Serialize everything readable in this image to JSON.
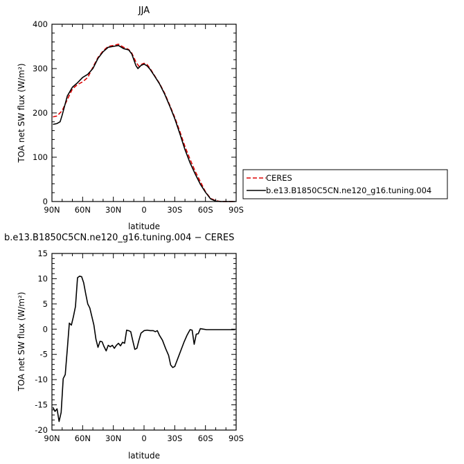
{
  "chart_data": [
    {
      "type": "line",
      "title": "JJA",
      "xlabel": "latitude",
      "ylabel": "TOA net SW flux (W/m²)",
      "xticks": [
        {
          "v": 90,
          "label": "90N"
        },
        {
          "v": 60,
          "label": "60N"
        },
        {
          "v": 30,
          "label": "30N"
        },
        {
          "v": 0,
          "label": "0"
        },
        {
          "v": -30,
          "label": "30S"
        },
        {
          "v": -60,
          "label": "60S"
        },
        {
          "v": -90,
          "label": "90S"
        }
      ],
      "xlim": [
        90,
        -90
      ],
      "yticks": [
        0,
        100,
        200,
        300,
        400
      ],
      "ylim": [
        0,
        400
      ],
      "legend_position": "right",
      "series": [
        {
          "name": "CERES",
          "color": "#dd0000",
          "dash": "dashed",
          "points": [
            [
              89,
              191
            ],
            [
              85,
              193
            ],
            [
              80,
              205
            ],
            [
              75,
              230
            ],
            [
              70,
              254
            ],
            [
              65,
              264
            ],
            [
              60,
              270
            ],
            [
              55,
              280
            ],
            [
              50,
              303
            ],
            [
              45,
              325
            ],
            [
              40,
              340
            ],
            [
              35,
              350
            ],
            [
              30,
              352
            ],
            [
              25,
              355
            ],
            [
              20,
              348
            ],
            [
              15,
              343
            ],
            [
              12,
              335
            ],
            [
              8,
              315
            ],
            [
              5,
              305
            ],
            [
              2,
              310
            ],
            [
              0,
              312
            ],
            [
              -3,
              309
            ],
            [
              -6,
              300
            ],
            [
              -10,
              285
            ],
            [
              -15,
              267
            ],
            [
              -20,
              245
            ],
            [
              -25,
              218
            ],
            [
              -30,
              190
            ],
            [
              -35,
              158
            ],
            [
              -40,
              124
            ],
            [
              -45,
              95
            ],
            [
              -50,
              68
            ],
            [
              -55,
              45
            ],
            [
              -60,
              22
            ],
            [
              -65,
              7
            ],
            [
              -70,
              2
            ],
            [
              -75,
              0
            ],
            [
              -80,
              0
            ],
            [
              -89,
              0
            ]
          ]
        },
        {
          "name": "b.e13.B1850C5CN.ne120_g16.tuning.004",
          "color": "#000000",
          "dash": "solid",
          "points": [
            [
              89,
              174
            ],
            [
              85,
              176
            ],
            [
              82,
              180
            ],
            [
              80,
              195
            ],
            [
              75,
              238
            ],
            [
              70,
              258
            ],
            [
              65,
              268
            ],
            [
              60,
              280
            ],
            [
              55,
              287
            ],
            [
              50,
              300
            ],
            [
              45,
              323
            ],
            [
              40,
              338
            ],
            [
              35,
              348
            ],
            [
              30,
              350
            ],
            [
              25,
              352
            ],
            [
              20,
              345
            ],
            [
              15,
              342
            ],
            [
              12,
              333
            ],
            [
              8,
              307
            ],
            [
              6,
              300
            ],
            [
              3,
              307
            ],
            [
              0,
              310
            ],
            [
              -3,
              306
            ],
            [
              -6,
              298
            ],
            [
              -10,
              284
            ],
            [
              -15,
              266
            ],
            [
              -20,
              243
            ],
            [
              -25,
              216
            ],
            [
              -30,
              187
            ],
            [
              -35,
              153
            ],
            [
              -40,
              117
            ],
            [
              -45,
              87
            ],
            [
              -50,
              62
            ],
            [
              -55,
              39
            ],
            [
              -60,
              21
            ],
            [
              -65,
              6
            ],
            [
              -70,
              1
            ],
            [
              -75,
              0
            ],
            [
              -80,
              0
            ],
            [
              -89,
              0
            ]
          ]
        }
      ]
    },
    {
      "type": "line",
      "title": "b.e13.B1850C5CN.ne120_g16.tuning.004 − CERES",
      "xlabel": "latitude",
      "ylabel": "TOA net SW flux (W/m²)",
      "xticks": [
        {
          "v": 90,
          "label": "90N"
        },
        {
          "v": 60,
          "label": "60N"
        },
        {
          "v": 30,
          "label": "30N"
        },
        {
          "v": 0,
          "label": "0"
        },
        {
          "v": -30,
          "label": "30S"
        },
        {
          "v": -60,
          "label": "60S"
        },
        {
          "v": -90,
          "label": "90S"
        }
      ],
      "xlim": [
        90,
        -90
      ],
      "yticks": [
        -20,
        -15,
        -10,
        -5,
        0,
        5,
        10,
        15
      ],
      "ylim": [
        -20,
        15
      ],
      "series": [
        {
          "name": "",
          "color": "#000000",
          "dash": "solid",
          "points": [
            [
              89,
              -15.5
            ],
            [
              87,
              -16.3
            ],
            [
              85,
              -15.8
            ],
            [
              83,
              -18.3
            ],
            [
              81,
              -16.5
            ],
            [
              79,
              -9.8
            ],
            [
              77,
              -9
            ],
            [
              75,
              -4
            ],
            [
              73,
              1.2
            ],
            [
              71,
              0.8
            ],
            [
              69,
              2.5
            ],
            [
              67,
              4.5
            ],
            [
              65,
              10.2
            ],
            [
              63,
              10.5
            ],
            [
              61,
              10.4
            ],
            [
              59,
              9.2
            ],
            [
              57,
              7
            ],
            [
              55,
              5
            ],
            [
              53,
              4.2
            ],
            [
              51,
              2.5
            ],
            [
              49,
              0.8
            ],
            [
              47,
              -2
            ],
            [
              45,
              -3.6
            ],
            [
              43,
              -2.4
            ],
            [
              41,
              -2.5
            ],
            [
              39,
              -3.5
            ],
            [
              37,
              -4.3
            ],
            [
              35,
              -3.2
            ],
            [
              33,
              -3.5
            ],
            [
              31,
              -3.2
            ],
            [
              29,
              -3.8
            ],
            [
              27,
              -3.2
            ],
            [
              25,
              -2.8
            ],
            [
              23,
              -3.3
            ],
            [
              21,
              -2.6
            ],
            [
              19,
              -2.8
            ],
            [
              17,
              -0.2
            ],
            [
              15,
              -0.3
            ],
            [
              13,
              -0.5
            ],
            [
              11,
              -2.3
            ],
            [
              9,
              -4
            ],
            [
              7,
              -3.8
            ],
            [
              5,
              -2.2
            ],
            [
              3,
              -0.8
            ],
            [
              0,
              -0.3
            ],
            [
              -3,
              -0.2
            ],
            [
              -6,
              -0.3
            ],
            [
              -9,
              -0.3
            ],
            [
              -11,
              -0.5
            ],
            [
              -13,
              -0.3
            ],
            [
              -15,
              -1.2
            ],
            [
              -18,
              -2.2
            ],
            [
              -21,
              -3.8
            ],
            [
              -24,
              -5.2
            ],
            [
              -26,
              -7.1
            ],
            [
              -28,
              -7.6
            ],
            [
              -30,
              -7.4
            ],
            [
              -33,
              -5.8
            ],
            [
              -36,
              -4.2
            ],
            [
              -39,
              -2.6
            ],
            [
              -42,
              -1.2
            ],
            [
              -45,
              -0.1
            ],
            [
              -47,
              -0.2
            ],
            [
              -49,
              -3
            ],
            [
              -51,
              -1
            ],
            [
              -53,
              -0.9
            ],
            [
              -55,
              0.1
            ],
            [
              -58,
              0
            ],
            [
              -61,
              -0.1
            ],
            [
              -65,
              -0.1
            ],
            [
              -70,
              -0.1
            ],
            [
              -75,
              -0.1
            ],
            [
              -80,
              -0.1
            ],
            [
              -85,
              -0.1
            ],
            [
              -89,
              -0.1
            ]
          ]
        }
      ]
    }
  ]
}
